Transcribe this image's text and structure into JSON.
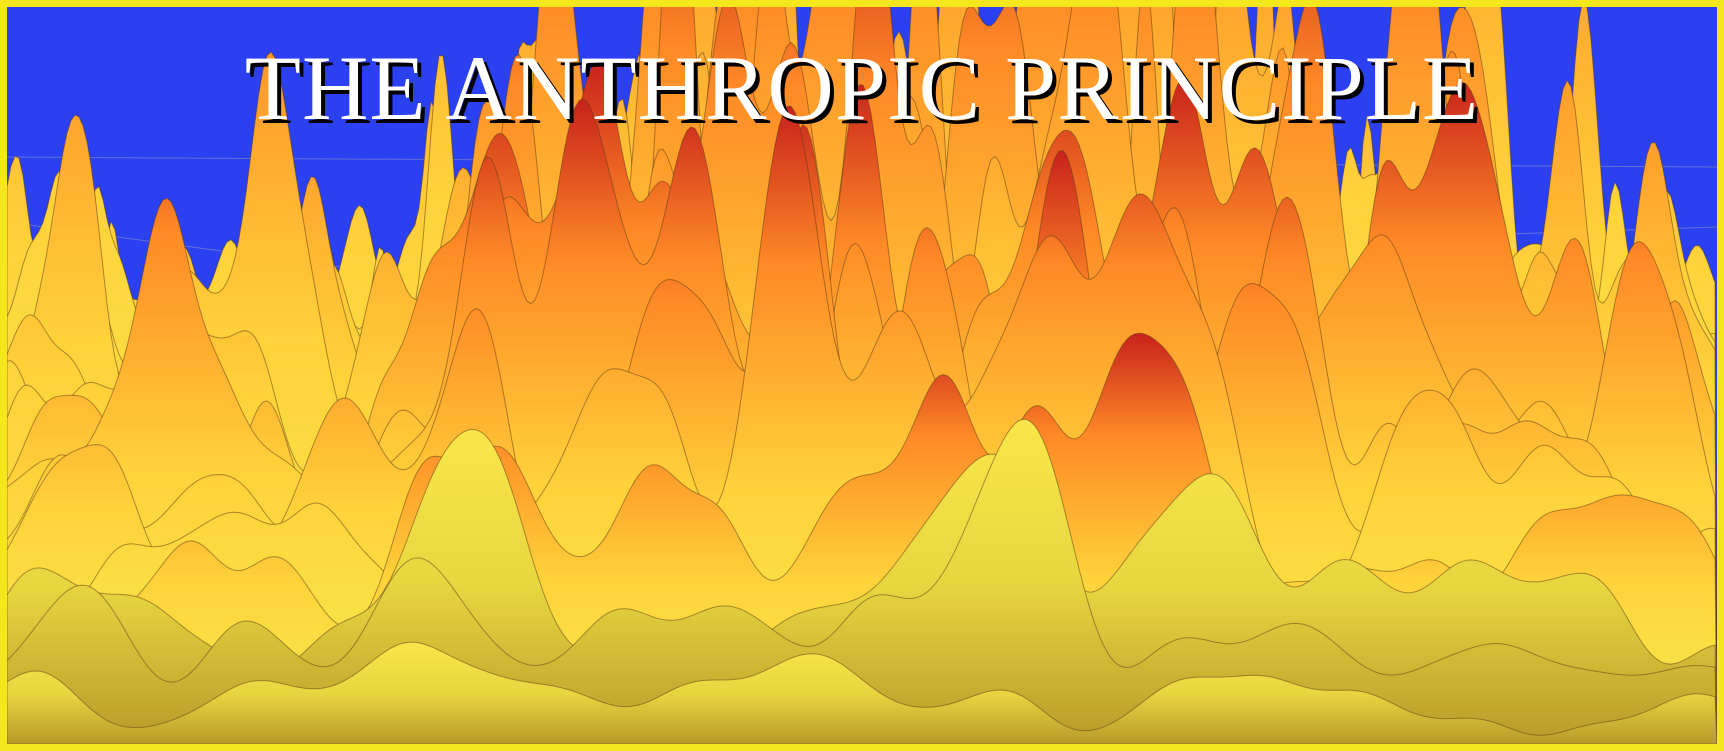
{
  "title": "THE ANTHROPIC PRINCIPLE"
}
